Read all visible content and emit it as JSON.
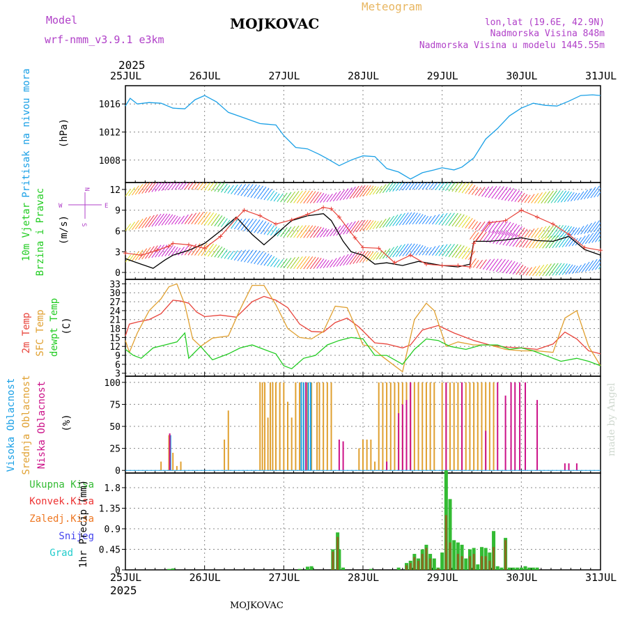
{
  "header": {
    "model_label": "Model",
    "model_name": "wrf-nmm_v3.9.1 e3km",
    "station": "MOJKOVAC",
    "title": "Meteogram",
    "lonlat": "lon,lat (19.6E, 42.9N)",
    "elevation": "Nadmorska Visina 848m",
    "model_elevation": "Nadmorska Visina u modelu 1445.55m",
    "year": "2025",
    "footer_station": "MOJKOVAC",
    "credit": "made by Angel"
  },
  "colors": {
    "pressure": "#1aa0e6",
    "temp2m": "#e8433a",
    "sfctemp": "#e0a030",
    "dewpt": "#22cc22",
    "high_cloud": "#1aa0e6",
    "mid_cloud": "#e0a030",
    "low_cloud": "#cc1188",
    "total_precip": "#33bb33",
    "conv_precip": "#ee3333",
    "frozen_precip": "#ee7722",
    "snow": "#4444ee",
    "graupel": "#22cccc"
  },
  "time_axis": {
    "labels": [
      "25JUL",
      "26JUL",
      "27JUL",
      "28JUL",
      "29JUL",
      "30JUL",
      "31JUL"
    ],
    "days": 6
  },
  "chart_data": [
    {
      "type": "line",
      "name": "pressure",
      "title": "Pritisak na nivou mora",
      "ylabel": "(hPa)",
      "yticks": [
        1008,
        1012,
        1016
      ],
      "ylim": [
        1004.8,
        1018.6
      ],
      "series": [
        {
          "name": "MSLP",
          "x": [
            0,
            0.06,
            0.15,
            0.3,
            0.45,
            0.6,
            0.75,
            0.88,
            1.0,
            1.15,
            1.3,
            1.5,
            1.7,
            1.9,
            2.0,
            2.15,
            2.3,
            2.45,
            2.55,
            2.7,
            2.85,
            3.0,
            3.15,
            3.3,
            3.45,
            3.6,
            3.75,
            3.9,
            4.0,
            4.15,
            4.25,
            4.4,
            4.55,
            4.7,
            4.85,
            5.0,
            5.15,
            5.3,
            5.45,
            5.6,
            5.75,
            5.9,
            6.0
          ],
          "values": [
            1015.7,
            1016.8,
            1016.0,
            1016.2,
            1016.1,
            1015.4,
            1015.3,
            1016.6,
            1017.2,
            1016.3,
            1014.8,
            1014.0,
            1013.2,
            1013.0,
            1011.5,
            1009.8,
            1009.6,
            1008.8,
            1008.2,
            1007.2,
            1008.0,
            1008.6,
            1008.5,
            1006.8,
            1006.3,
            1005.3,
            1006.2,
            1006.6,
            1006.9,
            1006.6,
            1007.0,
            1008.3,
            1011.0,
            1012.5,
            1014.3,
            1015.4,
            1016.1,
            1015.8,
            1015.7,
            1016.4,
            1017.2,
            1017.3,
            1017.2
          ]
        }
      ]
    },
    {
      "type": "line",
      "name": "wind",
      "title": "10m Vjetar",
      "subtitle": "Brzina i Pravac",
      "ylabel": "(m/s)",
      "compass": [
        "N",
        "S",
        "E",
        "W"
      ],
      "yticks": [
        0,
        3,
        6,
        9,
        12
      ],
      "ylim": [
        -1,
        13
      ],
      "series": [
        {
          "name": "wind_speed",
          "x": [
            0,
            0.2,
            0.35,
            0.5,
            0.6,
            0.8,
            1.0,
            1.2,
            1.4,
            1.6,
            1.75,
            1.9,
            2.0,
            2.1,
            2.3,
            2.5,
            2.6,
            2.75,
            2.85,
            3.0,
            3.15,
            3.3,
            3.5,
            3.7,
            3.85,
            4.0,
            4.2,
            4.35,
            4.4,
            4.6,
            4.8,
            5.0,
            5.2,
            5.4,
            5.6,
            5.8,
            6.0
          ],
          "values": [
            2,
            1.2,
            0.6,
            1.8,
            2.5,
            3.2,
            4.2,
            6.0,
            8.0,
            5.5,
            4.0,
            5.5,
            6.5,
            7.5,
            8.2,
            8.5,
            7.5,
            4.5,
            3.0,
            2.5,
            1.2,
            1.4,
            1.0,
            1.6,
            1.3,
            1.0,
            0.8,
            1.2,
            4.5,
            4.5,
            4.7,
            5.0,
            4.6,
            4.5,
            5.2,
            3.3,
            2.5
          ]
        },
        {
          "name": "wind_gust",
          "x": [
            0,
            0.2,
            0.4,
            0.55,
            0.6,
            0.8,
            1.0,
            1.2,
            1.4,
            1.5,
            1.7,
            1.9,
            2.1,
            2.3,
            2.5,
            2.6,
            2.7,
            2.9,
            3.0,
            3.2,
            3.4,
            3.6,
            3.8,
            4.0,
            4.2,
            4.35,
            4.4,
            4.6,
            4.8,
            5.0,
            5.2,
            5.4,
            5.6,
            5.8,
            6.0
          ],
          "values": [
            2.8,
            2.5,
            3.2,
            3.8,
            4.2,
            4.0,
            3.5,
            5.2,
            7.8,
            9.0,
            8.2,
            7.0,
            7.6,
            8.4,
            9.4,
            9.2,
            8.0,
            5.0,
            3.6,
            3.5,
            1.4,
            2.5,
            1.2,
            1.0,
            1.0,
            0.8,
            4.2,
            7.2,
            7.5,
            9.0,
            8.0,
            7.0,
            5.5,
            3.6,
            3.2
          ]
        }
      ]
    },
    {
      "type": "line",
      "name": "temperature",
      "title": "2m Temp",
      "ylabel": "(C)",
      "yticks": [
        3,
        6,
        9,
        12,
        15,
        18,
        21,
        24,
        27,
        30,
        33
      ],
      "ylim": [
        2,
        34.5
      ],
      "series": [
        {
          "name": "2m Temp",
          "x": [
            0,
            0.05,
            0.15,
            0.3,
            0.45,
            0.55,
            0.6,
            0.7,
            0.8,
            0.9,
            1.0,
            1.2,
            1.4,
            1.6,
            1.75,
            1.9,
            2.05,
            2.2,
            2.35,
            2.5,
            2.65,
            2.8,
            2.95,
            3.15,
            3.3,
            3.5,
            3.6,
            3.75,
            3.95,
            4.15,
            4.4,
            4.6,
            4.8,
            5.0,
            5.2,
            5.4,
            5.55,
            5.7,
            5.85,
            6.0
          ],
          "values": [
            15.5,
            19.5,
            20.2,
            21.0,
            23.0,
            26.0,
            27.5,
            27.2,
            26.5,
            23.5,
            22.0,
            22.5,
            21.8,
            27.0,
            28.8,
            27.5,
            25.0,
            19.5,
            17.0,
            16.8,
            20.0,
            21.5,
            18.5,
            13.2,
            12.8,
            11.5,
            12.5,
            17.5,
            19.0,
            16.5,
            14.0,
            12.5,
            11.8,
            11.5,
            11.0,
            12.8,
            16.8,
            14.5,
            10.5,
            9.5
          ]
        },
        {
          "name": "SFC Temp",
          "x": [
            0,
            0.05,
            0.15,
            0.3,
            0.45,
            0.55,
            0.65,
            0.75,
            0.85,
            0.95,
            1.1,
            1.3,
            1.45,
            1.6,
            1.75,
            1.9,
            2.05,
            2.2,
            2.35,
            2.5,
            2.65,
            2.8,
            2.9,
            3.0,
            3.1,
            3.25,
            3.35,
            3.5,
            3.65,
            3.8,
            3.9,
            4.05,
            4.2,
            4.4,
            4.6,
            4.8,
            5.0,
            5.2,
            5.4,
            5.55,
            5.7,
            5.85,
            6.0
          ],
          "values": [
            14.0,
            10.0,
            16.5,
            24.0,
            28.0,
            32.0,
            33.0,
            26.0,
            14.5,
            12.0,
            14.8,
            15.5,
            24.5,
            32.5,
            32.5,
            26.0,
            18.0,
            15.0,
            14.5,
            17.0,
            25.5,
            25.0,
            19.0,
            12.5,
            12.0,
            8.5,
            6.5,
            3.5,
            21.0,
            26.5,
            24.0,
            12.0,
            13.5,
            12.5,
            12.5,
            11.0,
            10.5,
            10.5,
            10.0,
            21.5,
            24.0,
            12.0,
            5.5
          ]
        },
        {
          "name": "dewpt Temp",
          "x": [
            0,
            0.1,
            0.2,
            0.35,
            0.5,
            0.65,
            0.75,
            0.8,
            0.95,
            1.1,
            1.3,
            1.45,
            1.6,
            1.75,
            1.9,
            2.0,
            2.1,
            2.25,
            2.4,
            2.55,
            2.7,
            2.85,
            3.0,
            3.15,
            3.3,
            3.5,
            3.65,
            3.8,
            3.95,
            4.1,
            4.3,
            4.5,
            4.7,
            4.85,
            5.0,
            5.15,
            5.35,
            5.5,
            5.7,
            5.85,
            6.0
          ],
          "values": [
            11.0,
            9.0,
            8.0,
            11.5,
            12.5,
            13.5,
            16.5,
            8.0,
            12.0,
            7.5,
            9.5,
            11.5,
            12.5,
            11.0,
            9.5,
            5.5,
            4.5,
            8.0,
            9.0,
            12.5,
            14.0,
            15.0,
            14.5,
            9.0,
            9.0,
            6.0,
            11.0,
            14.5,
            14.0,
            12.0,
            11.0,
            12.5,
            12.5,
            11.0,
            11.5,
            10.5,
            8.5,
            7.0,
            8.0,
            7.0,
            5.5
          ]
        }
      ]
    },
    {
      "type": "bar",
      "name": "cloud",
      "title": "Oblacnost",
      "labels": [
        "Visoka Oblacnost",
        "Srednja Oblacnost",
        "Niska Oblacnost"
      ],
      "ylabel": "(%)",
      "yticks": [
        0,
        25,
        50,
        75,
        100
      ],
      "ylim": [
        -3,
        107
      ],
      "series": [
        {
          "name": "mid",
          "x": [
            0.45,
            0.55,
            0.6,
            0.65,
            0.7,
            1.25,
            1.3,
            1.7,
            1.73,
            1.76,
            1.8,
            1.83,
            1.86,
            1.9,
            1.95,
            2.0,
            2.05,
            2.1,
            2.15,
            2.2,
            2.25,
            2.3,
            2.35,
            2.42,
            2.45,
            2.5,
            2.55,
            2.6,
            2.95,
            3.0,
            3.05,
            3.1,
            3.15,
            3.2,
            3.25,
            3.3,
            3.35,
            3.4,
            3.45,
            3.5,
            3.55,
            3.6,
            3.65,
            3.7,
            3.75,
            3.8,
            3.85,
            3.9,
            4.0,
            4.05,
            4.1,
            4.15,
            4.2,
            4.25,
            4.3,
            4.35,
            4.4,
            4.45,
            4.5,
            4.55,
            4.6,
            4.65
          ],
          "values": [
            10,
            40,
            20,
            5,
            10,
            35,
            68,
            100,
            100,
            100,
            60,
            100,
            100,
            100,
            100,
            100,
            78,
            60,
            100,
            100,
            100,
            100,
            100,
            100,
            100,
            100,
            100,
            100,
            25,
            35,
            35,
            35,
            10,
            100,
            100,
            100,
            100,
            100,
            100,
            100,
            100,
            100,
            100,
            100,
            100,
            100,
            100,
            100,
            100,
            100,
            100,
            100,
            100,
            100,
            100,
            100,
            100,
            100,
            100,
            100,
            100,
            100
          ]
        },
        {
          "name": "high",
          "x": [
            0.57,
            2.22,
            2.25,
            2.28,
            2.31,
            2.34
          ],
          "values": [
            40,
            100,
            100,
            100,
            100,
            100
          ]
        },
        {
          "name": "low",
          "x": [
            0.56,
            2.28,
            2.7,
            2.75,
            3.3,
            3.45,
            3.5,
            3.55,
            3.6,
            4.05,
            4.25,
            4.55,
            4.7,
            4.8,
            4.87,
            4.92,
            4.98,
            5.05,
            5.2,
            5.55,
            5.6,
            5.7
          ],
          "values": [
            42,
            100,
            35,
            33,
            10,
            65,
            75,
            80,
            100,
            100,
            100,
            45,
            100,
            85,
            100,
            100,
            100,
            100,
            80,
            8,
            8,
            8
          ]
        }
      ]
    },
    {
      "type": "bar",
      "name": "precip",
      "titles": [
        "Ukupna Kisa",
        "Konvek.Kisa",
        "Zaledj.Kisa",
        "Snijeg",
        "Grad"
      ],
      "ylabel": "1hr Precip (mm)",
      "yticks": [
        0,
        0.45,
        0.9,
        1.35,
        1.8
      ],
      "ytick_labels": [
        "0",
        "0.45",
        "0.9",
        "1.35",
        "1.8"
      ],
      "ylim": [
        0,
        2.12
      ],
      "series": [
        {
          "name": "total",
          "x": [
            0.55,
            0.6,
            2.2,
            2.3,
            2.35,
            2.62,
            2.68,
            2.7,
            2.75,
            3.1,
            3.45,
            3.55,
            3.6,
            3.65,
            3.7,
            3.75,
            3.8,
            3.85,
            3.9,
            3.95,
            4.0,
            4.05,
            4.1,
            4.15,
            4.2,
            4.25,
            4.3,
            4.35,
            4.4,
            4.45,
            4.5,
            4.55,
            4.6,
            4.65,
            4.7,
            4.75,
            4.8,
            4.85,
            4.9,
            4.95,
            5.0,
            5.05,
            5.1,
            5.15,
            5.2
          ],
          "values": [
            0.02,
            0.03,
            0.02,
            0.07,
            0.08,
            0.45,
            0.82,
            0.45,
            0.05,
            0.02,
            0.05,
            0.15,
            0.2,
            0.35,
            0.25,
            0.45,
            0.55,
            0.35,
            0.25,
            0.05,
            0.38,
            2.18,
            1.55,
            0.65,
            0.6,
            0.55,
            0.25,
            0.45,
            0.48,
            0.12,
            0.5,
            0.48,
            0.38,
            0.85,
            0.08,
            0.05,
            0.7,
            0.05,
            0.05,
            0.05,
            0.05,
            0.08,
            0.05,
            0.05,
            0.05
          ]
        },
        {
          "name": "convective",
          "x": [
            2.62,
            2.68,
            3.55,
            3.6,
            3.65,
            3.7,
            3.75,
            3.8,
            3.85,
            3.95,
            4.05,
            4.1,
            4.2,
            4.25,
            4.35,
            4.4,
            4.5,
            4.55,
            4.6,
            4.65,
            4.8
          ],
          "values": [
            0.4,
            0.72,
            0.1,
            0.15,
            0.28,
            0.2,
            0.35,
            0.48,
            0.25,
            0.03,
            1.2,
            0.6,
            0.35,
            0.3,
            0.3,
            0.35,
            0.3,
            0.3,
            0.2,
            0.5,
            0.65
          ]
        }
      ]
    }
  ]
}
